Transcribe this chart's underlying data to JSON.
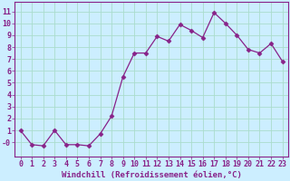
{
  "x": [
    0,
    1,
    2,
    3,
    4,
    5,
    6,
    7,
    8,
    9,
    10,
    11,
    12,
    13,
    14,
    15,
    16,
    17,
    18,
    19,
    20,
    21,
    22,
    23
  ],
  "y": [
    1,
    -0.2,
    -0.3,
    1,
    -0.2,
    -0.2,
    -0.3,
    0.7,
    2.2,
    5.5,
    7.5,
    7.5,
    8.9,
    8.5,
    9.9,
    9.4,
    8.8,
    10.9,
    10.0,
    9.0,
    7.8,
    7.5,
    8.3,
    6.8
  ],
  "line_color": "#882288",
  "marker": "D",
  "marker_size": 2.5,
  "bg_color": "#cceeff",
  "grid_color": "#aaddcc",
  "tick_color": "#882288",
  "spine_color": "#882288",
  "xlabel": "Windchill (Refroidissement éolien,°C)",
  "xlim": [
    -0.5,
    23.5
  ],
  "ylim": [
    -1.2,
    11.8
  ],
  "yticks": [
    0,
    1,
    2,
    3,
    4,
    5,
    6,
    7,
    8,
    9,
    10,
    11
  ],
  "ytick_labels": [
    "-0",
    "1",
    "2",
    "3",
    "4",
    "5",
    "6",
    "7",
    "8",
    "9",
    "10",
    "11"
  ],
  "xticks": [
    0,
    1,
    2,
    3,
    4,
    5,
    6,
    7,
    8,
    9,
    10,
    11,
    12,
    13,
    14,
    15,
    16,
    17,
    18,
    19,
    20,
    21,
    22,
    23
  ],
  "font_size": 6,
  "label_font_size": 6.5
}
